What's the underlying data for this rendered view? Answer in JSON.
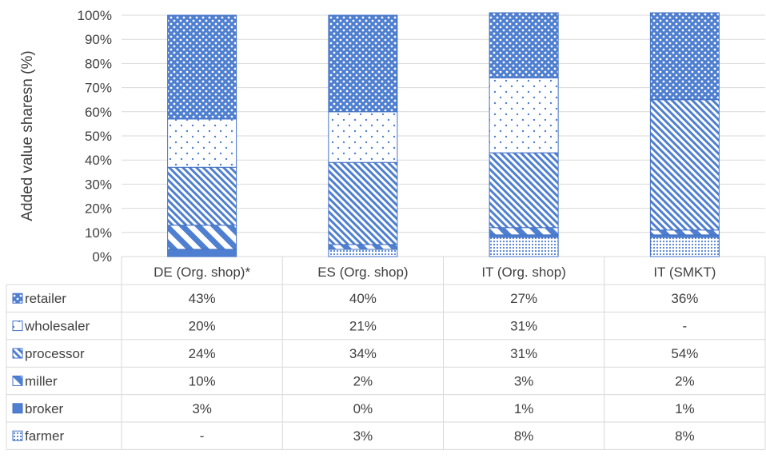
{
  "chart_data": {
    "type": "bar",
    "stacked": true,
    "ylabel": "Added value sharesn (%)",
    "ylim": [
      0,
      100
    ],
    "yticks": [
      "0%",
      "10%",
      "20%",
      "30%",
      "40%",
      "50%",
      "60%",
      "70%",
      "80%",
      "90%",
      "100%"
    ],
    "categories": [
      "DE (Org. shop)*",
      "ES (Org. shop)",
      "IT (Org. shop)",
      "IT (SMKT)"
    ],
    "series": [
      {
        "name": "farmer",
        "values": [
          0,
          3,
          8,
          8
        ],
        "table": [
          "-",
          "3%",
          "8%",
          "8%"
        ],
        "pattern": "dots-dense"
      },
      {
        "name": "broker",
        "values": [
          3,
          0,
          1,
          1
        ],
        "table": [
          "3%",
          "0%",
          "1%",
          "1%"
        ],
        "pattern": "solid"
      },
      {
        "name": "miller",
        "values": [
          10,
          2,
          3,
          2
        ],
        "table": [
          "10%",
          "2%",
          "3%",
          "2%"
        ],
        "pattern": "wide-diagonal"
      },
      {
        "name": "processor",
        "values": [
          24,
          34,
          31,
          54
        ],
        "table": [
          "24%",
          "34%",
          "31%",
          "54%"
        ],
        "pattern": "diagonal"
      },
      {
        "name": "wholesaler",
        "values": [
          20,
          21,
          31,
          0
        ],
        "table": [
          "20%",
          "21%",
          "31%",
          "-"
        ],
        "pattern": "dots-sparse"
      },
      {
        "name": "retailer",
        "values": [
          43,
          40,
          27,
          36
        ],
        "table": [
          "43%",
          "40%",
          "27%",
          "36%"
        ],
        "pattern": "checker"
      }
    ],
    "table_row_order": [
      "retailer",
      "wholesaler",
      "processor",
      "miller",
      "broker",
      "farmer"
    ],
    "colors": {
      "fill": "#4f7fd0",
      "border": "#4472c4",
      "grid": "#d9d9d9",
      "text": "#404040"
    },
    "grid": true,
    "legend": "data-table"
  }
}
